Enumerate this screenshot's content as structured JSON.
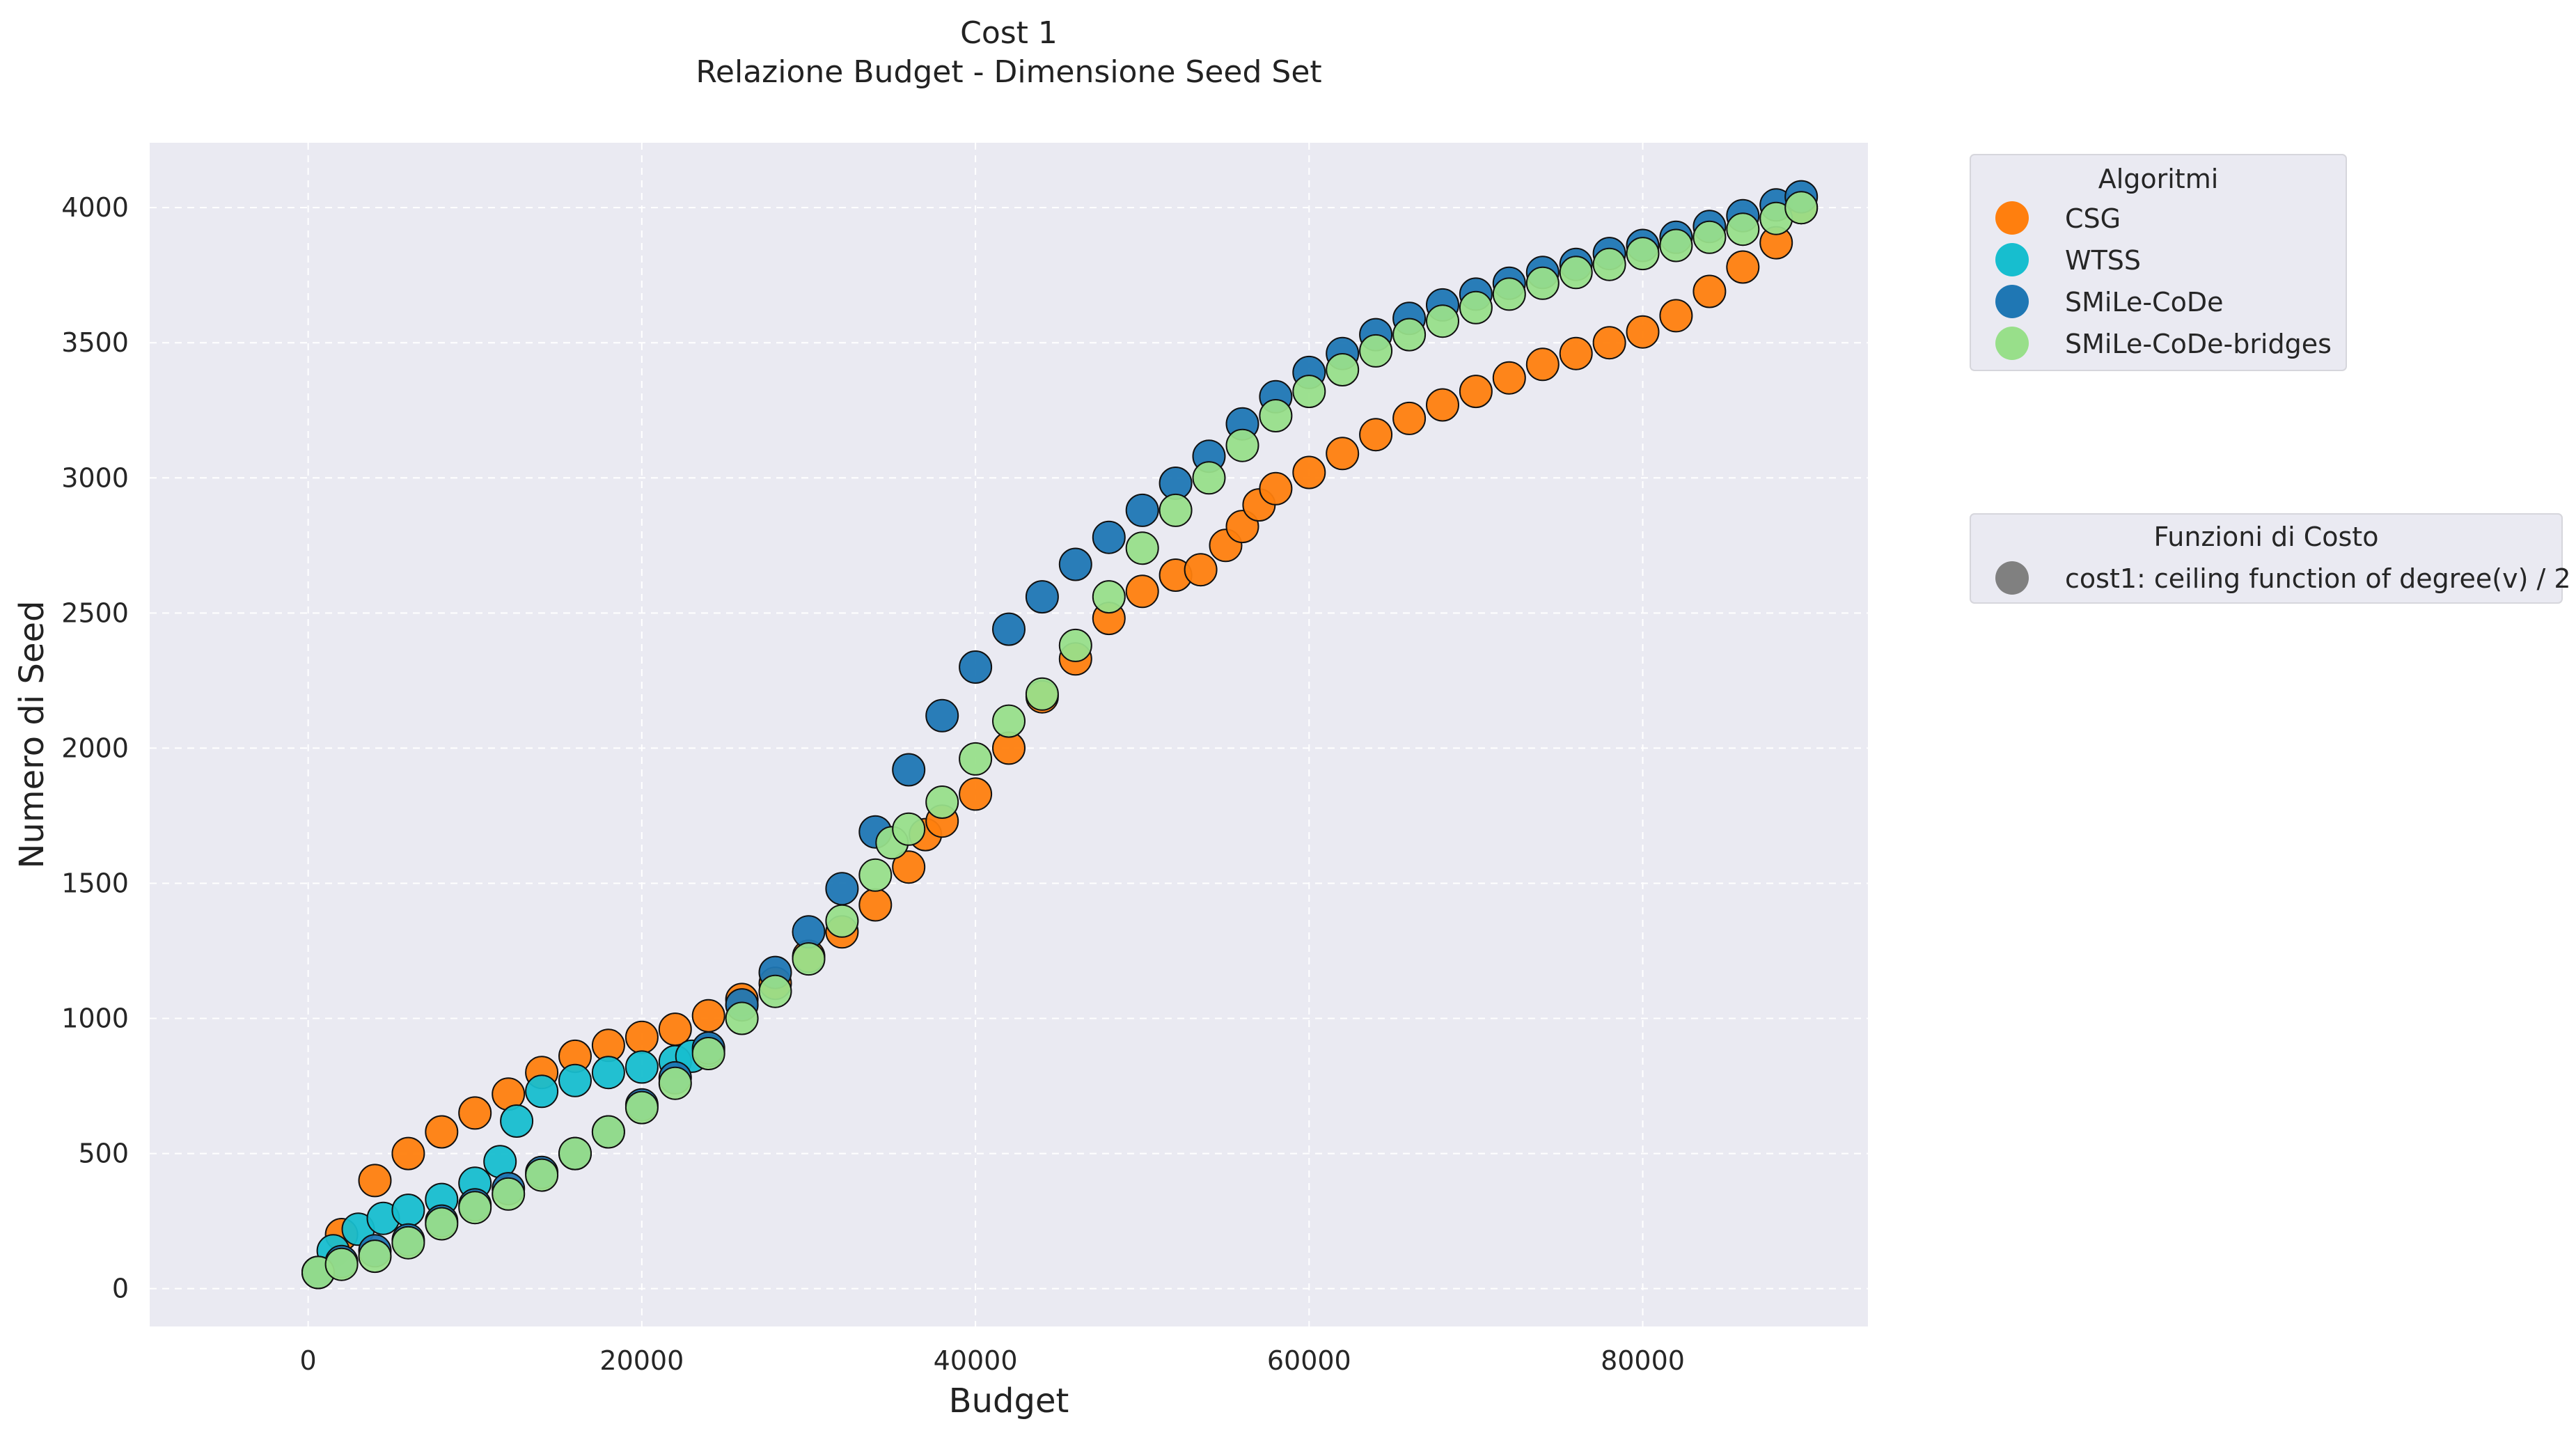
{
  "chart_data": {
    "type": "scatter",
    "title": "Cost 1",
    "subtitle": "Relazione Budget - Dimensione Seed Set",
    "xlabel": "Budget",
    "ylabel": "Numero di Seed",
    "xlim": [
      -9500,
      93500
    ],
    "ylim": [
      -140,
      4240
    ],
    "xticks": [
      0,
      20000,
      40000,
      60000,
      80000
    ],
    "yticks": [
      0,
      500,
      1000,
      1500,
      2000,
      2500,
      3000,
      3500,
      4000
    ],
    "xtick_labels": [
      "0",
      "20000",
      "40000",
      "60000",
      "80000"
    ],
    "ytick_labels": [
      "0",
      "500",
      "1000",
      "1500",
      "2000",
      "2500",
      "3000",
      "3500",
      "4000"
    ],
    "grid": true,
    "background": "#eaeaf2",
    "legend_placement": "outside-right",
    "legends": [
      {
        "title": "Algoritmi",
        "entries": [
          {
            "label": "CSG",
            "color": "#ff7f0e"
          },
          {
            "label": "WTSS",
            "color": "#17becf"
          },
          {
            "label": "SMiLe-CoDe",
            "color": "#1f77b4"
          },
          {
            "label": "SMiLe-CoDe-bridges",
            "color": "#98df8a"
          }
        ]
      },
      {
        "title": "Funzioni di Costo",
        "entries": [
          {
            "label": "cost1: ceiling function of degree(v) / 2",
            "color": "#808080"
          }
        ]
      }
    ],
    "series": [
      {
        "name": "CSG",
        "color": "#ff7f0e",
        "x": [
          600,
          2000,
          4000,
          6000,
          8000,
          10000,
          12000,
          14000,
          16000,
          18000,
          20000,
          22000,
          24000,
          26000,
          28000,
          30000,
          32000,
          34000,
          36000,
          37000,
          38000,
          40000,
          42000,
          44000,
          46000,
          48000,
          50000,
          52000,
          53500,
          55000,
          56000,
          57000,
          58000,
          60000,
          62000,
          64000,
          66000,
          68000,
          70000,
          72000,
          74000,
          76000,
          78000,
          80000,
          82000,
          84000,
          86000,
          88000,
          89500
        ],
        "y": [
          60,
          200,
          400,
          500,
          580,
          650,
          720,
          800,
          860,
          900,
          930,
          960,
          1010,
          1070,
          1130,
          1230,
          1320,
          1420,
          1560,
          1680,
          1730,
          1830,
          2000,
          2190,
          2330,
          2480,
          2580,
          2640,
          2660,
          2750,
          2820,
          2900,
          2960,
          3020,
          3090,
          3160,
          3220,
          3270,
          3320,
          3370,
          3420,
          3460,
          3500,
          3540,
          3600,
          3690,
          3780,
          3870,
          4000
        ]
      },
      {
        "name": "WTSS",
        "color": "#17becf",
        "x": [
          600,
          1500,
          3000,
          4500,
          6000,
          8000,
          10000,
          11500,
          12500,
          14000,
          16000,
          18000,
          20000,
          22000,
          23000,
          24000
        ],
        "y": [
          60,
          140,
          220,
          260,
          290,
          330,
          390,
          470,
          620,
          730,
          770,
          800,
          820,
          840,
          860,
          880
        ]
      },
      {
        "name": "SMiLe-CoDe",
        "color": "#1f77b4",
        "x": [
          600,
          2000,
          4000,
          6000,
          8000,
          10000,
          12000,
          14000,
          16000,
          18000,
          20000,
          22000,
          24000,
          26000,
          28000,
          30000,
          32000,
          34000,
          36000,
          38000,
          40000,
          42000,
          44000,
          46000,
          48000,
          50000,
          52000,
          54000,
          56000,
          58000,
          60000,
          62000,
          64000,
          66000,
          68000,
          70000,
          72000,
          74000,
          76000,
          78000,
          80000,
          82000,
          84000,
          86000,
          88000,
          89500
        ],
        "y": [
          60,
          100,
          140,
          180,
          250,
          310,
          370,
          430,
          500,
          580,
          680,
          780,
          890,
          1050,
          1170,
          1320,
          1480,
          1690,
          1920,
          2120,
          2300,
          2440,
          2560,
          2680,
          2780,
          2880,
          2980,
          3080,
          3200,
          3300,
          3390,
          3460,
          3530,
          3590,
          3640,
          3680,
          3720,
          3760,
          3790,
          3830,
          3860,
          3890,
          3930,
          3970,
          4010,
          4040
        ]
      },
      {
        "name": "SMiLe-CoDe-bridges",
        "color": "#98df8a",
        "x": [
          600,
          2000,
          4000,
          6000,
          8000,
          10000,
          12000,
          14000,
          16000,
          18000,
          20000,
          22000,
          24000,
          26000,
          28000,
          30000,
          32000,
          34000,
          35000,
          36000,
          38000,
          40000,
          42000,
          44000,
          46000,
          48000,
          50000,
          52000,
          54000,
          56000,
          58000,
          60000,
          62000,
          64000,
          66000,
          68000,
          70000,
          72000,
          74000,
          76000,
          78000,
          80000,
          82000,
          84000,
          86000,
          88000,
          89500
        ],
        "y": [
          60,
          90,
          120,
          170,
          240,
          300,
          350,
          420,
          500,
          580,
          670,
          760,
          870,
          1000,
          1100,
          1220,
          1360,
          1530,
          1650,
          1700,
          1800,
          1960,
          2100,
          2200,
          2380,
          2560,
          2740,
          2880,
          3000,
          3120,
          3230,
          3320,
          3400,
          3470,
          3530,
          3580,
          3630,
          3680,
          3720,
          3760,
          3790,
          3830,
          3860,
          3890,
          3920,
          3960,
          4000
        ]
      }
    ]
  }
}
